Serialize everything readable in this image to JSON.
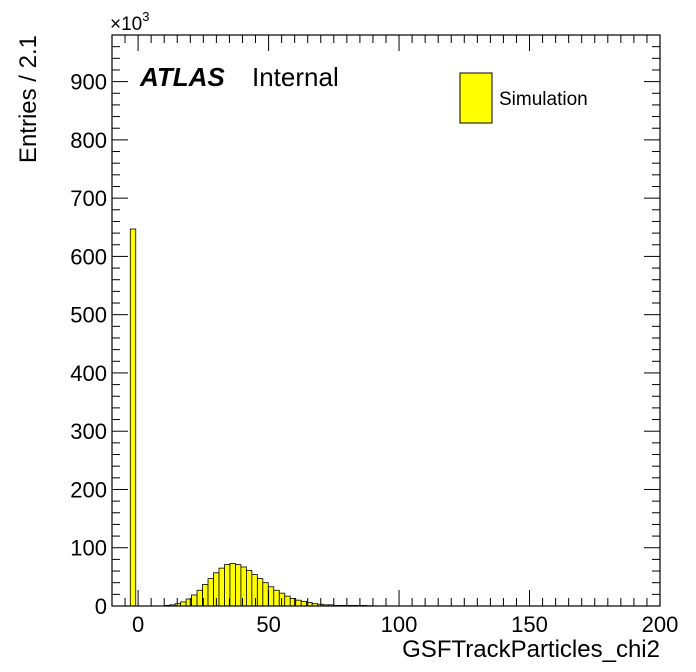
{
  "chart_data": {
    "type": "bar",
    "histogram": true,
    "xlabel": "GSFTrackParticles_chi2",
    "ylabel": "Entries / 2.1",
    "y_multiplier_base": "×10",
    "y_multiplier_exp": "3",
    "xlim": [
      -10,
      200
    ],
    "ylim": [
      0,
      980
    ],
    "bin_width": 2.1,
    "x_ticks": [
      0,
      50,
      100,
      150,
      200
    ],
    "y_ticks": [
      0,
      100,
      200,
      300,
      400,
      500,
      600,
      700,
      800,
      900
    ],
    "x_tick_labels": [
      "0",
      "50",
      "100",
      "150",
      "200"
    ],
    "y_tick_labels": [
      "0",
      "100",
      "200",
      "300",
      "400",
      "500",
      "600",
      "700",
      "800",
      "900"
    ],
    "series": [
      {
        "name": "Simulation",
        "color": "#ffff00",
        "bins": [
          {
            "x": -3.0,
            "y": 647
          },
          {
            "x": 10.0,
            "y": 1
          },
          {
            "x": 12.1,
            "y": 2
          },
          {
            "x": 14.2,
            "y": 4
          },
          {
            "x": 16.3,
            "y": 7
          },
          {
            "x": 18.4,
            "y": 12
          },
          {
            "x": 20.5,
            "y": 19
          },
          {
            "x": 22.6,
            "y": 27
          },
          {
            "x": 24.7,
            "y": 37
          },
          {
            "x": 26.8,
            "y": 47
          },
          {
            "x": 28.9,
            "y": 57
          },
          {
            "x": 31.0,
            "y": 65
          },
          {
            "x": 33.1,
            "y": 71
          },
          {
            "x": 35.2,
            "y": 73
          },
          {
            "x": 37.3,
            "y": 71
          },
          {
            "x": 39.4,
            "y": 67
          },
          {
            "x": 41.5,
            "y": 61
          },
          {
            "x": 43.6,
            "y": 54
          },
          {
            "x": 45.7,
            "y": 47
          },
          {
            "x": 47.8,
            "y": 40
          },
          {
            "x": 49.9,
            "y": 33
          },
          {
            "x": 52.0,
            "y": 27
          },
          {
            "x": 54.1,
            "y": 22
          },
          {
            "x": 56.2,
            "y": 17
          },
          {
            "x": 58.3,
            "y": 13
          },
          {
            "x": 60.4,
            "y": 10
          },
          {
            "x": 62.5,
            "y": 8
          },
          {
            "x": 64.6,
            "y": 6
          },
          {
            "x": 66.7,
            "y": 4
          },
          {
            "x": 68.8,
            "y": 3
          },
          {
            "x": 70.9,
            "y": 2
          },
          {
            "x": 73.0,
            "y": 2
          },
          {
            "x": 75.1,
            "y": 1
          },
          {
            "x": 77.2,
            "y": 1
          },
          {
            "x": 79.3,
            "y": 1
          },
          {
            "x": 81.4,
            "y": 1
          },
          {
            "x": 83.5,
            "y": 1
          },
          {
            "x": 85.6,
            "y": 1
          },
          {
            "x": 87.7,
            "y": 0.5
          },
          {
            "x": 89.8,
            "y": 0.3
          }
        ]
      }
    ],
    "annotations": {
      "atlas": "ATLAS",
      "status": "Internal"
    },
    "legend": {
      "placement": "top-right",
      "entries": [
        "Simulation"
      ]
    },
    "grid": false
  }
}
